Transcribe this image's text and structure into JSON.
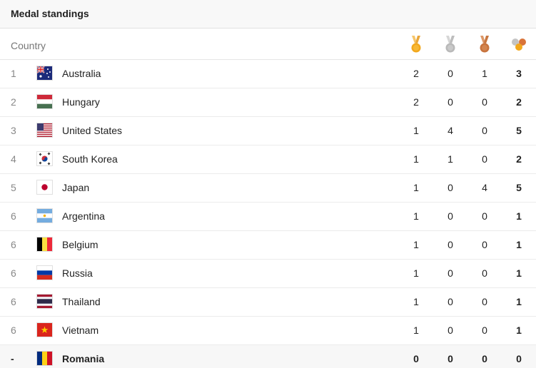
{
  "header": {
    "title": "Medal standings"
  },
  "columns": {
    "country": "Country",
    "gold_icon": "gold-medal-icon",
    "silver_icon": "silver-medal-icon",
    "bronze_icon": "bronze-medal-icon",
    "total_icon": "total-medals-icon"
  },
  "colors": {
    "gold": "#f2a81d",
    "silver": "#b9b9b9",
    "bronze": "#c8733d"
  },
  "rows": [
    {
      "rank": "1",
      "country": "Australia",
      "flag": "australia-flag-icon",
      "gold": "2",
      "silver": "0",
      "bronze": "1",
      "total": "3"
    },
    {
      "rank": "2",
      "country": "Hungary",
      "flag": "hungary-flag-icon",
      "gold": "2",
      "silver": "0",
      "bronze": "0",
      "total": "2"
    },
    {
      "rank": "3",
      "country": "United States",
      "flag": "united-states-flag-icon",
      "gold": "1",
      "silver": "4",
      "bronze": "0",
      "total": "5"
    },
    {
      "rank": "4",
      "country": "South Korea",
      "flag": "south-korea-flag-icon",
      "gold": "1",
      "silver": "1",
      "bronze": "0",
      "total": "2"
    },
    {
      "rank": "5",
      "country": "Japan",
      "flag": "japan-flag-icon",
      "gold": "1",
      "silver": "0",
      "bronze": "4",
      "total": "5"
    },
    {
      "rank": "6",
      "country": "Argentina",
      "flag": "argentina-flag-icon",
      "gold": "1",
      "silver": "0",
      "bronze": "0",
      "total": "1"
    },
    {
      "rank": "6",
      "country": "Belgium",
      "flag": "belgium-flag-icon",
      "gold": "1",
      "silver": "0",
      "bronze": "0",
      "total": "1"
    },
    {
      "rank": "6",
      "country": "Russia",
      "flag": "russia-flag-icon",
      "gold": "1",
      "silver": "0",
      "bronze": "0",
      "total": "1"
    },
    {
      "rank": "6",
      "country": "Thailand",
      "flag": "thailand-flag-icon",
      "gold": "1",
      "silver": "0",
      "bronze": "0",
      "total": "1"
    },
    {
      "rank": "6",
      "country": "Vietnam",
      "flag": "vietnam-flag-icon",
      "gold": "1",
      "silver": "0",
      "bronze": "0",
      "total": "1"
    },
    {
      "rank": "-",
      "country": "Romania",
      "flag": "romania-flag-icon",
      "gold": "0",
      "silver": "0",
      "bronze": "0",
      "total": "0"
    }
  ]
}
